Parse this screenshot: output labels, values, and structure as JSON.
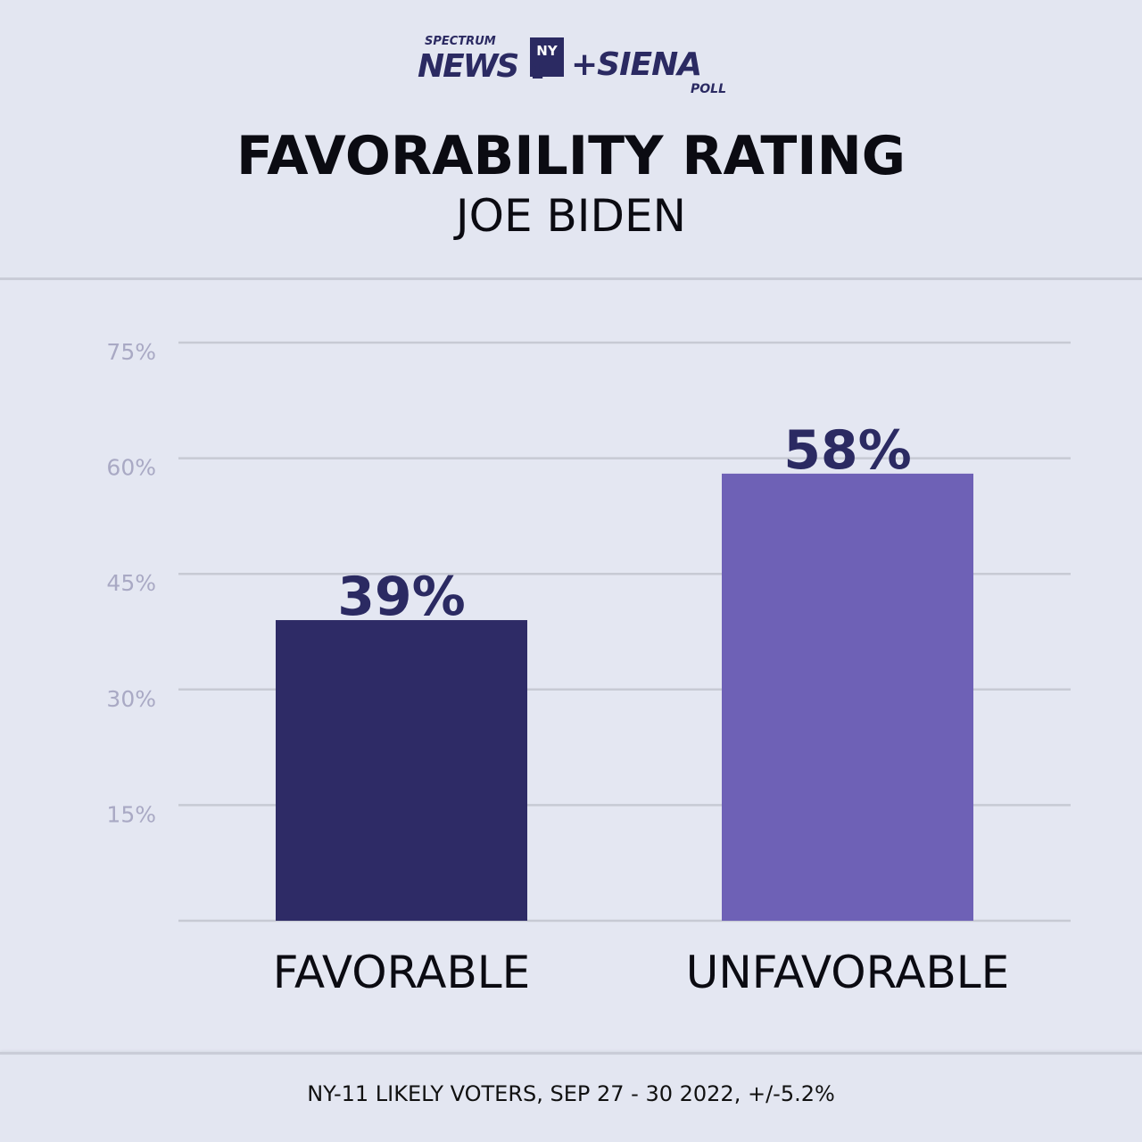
{
  "logo": {
    "line1": "SPECTRUM",
    "line2": "NEWS",
    "badge_top": "NY",
    "badge_bottom": "1",
    "plus_siena": "+SIENA",
    "poll": "POLL",
    "color": "#2b2a62"
  },
  "header": {
    "title": "FAVORABILITY RATING",
    "subtitle": "JOE BIDEN"
  },
  "footer": {
    "note": "NY-11 LIKELY VOTERS, SEP 27 - 30 2022, +/-5.2%"
  },
  "chart_data": {
    "type": "bar",
    "title": "FAVORABILITY RATING",
    "subtitle": "JOE BIDEN",
    "categories": [
      "FAVORABLE",
      "UNFAVORABLE"
    ],
    "values": [
      39,
      58
    ],
    "value_labels": [
      "39%",
      "58%"
    ],
    "colors": [
      "#2e2b66",
      "#6e61b6"
    ],
    "ylim": [
      0,
      75
    ],
    "yticks": [
      15,
      30,
      45,
      60,
      75
    ],
    "ytick_labels": [
      "15%",
      "30%",
      "45%",
      "60%",
      "75%"
    ],
    "grid": true,
    "grid_color": "#c7cad4",
    "tick_color": "#a9a9c4",
    "label_color": "#2b2a62"
  }
}
